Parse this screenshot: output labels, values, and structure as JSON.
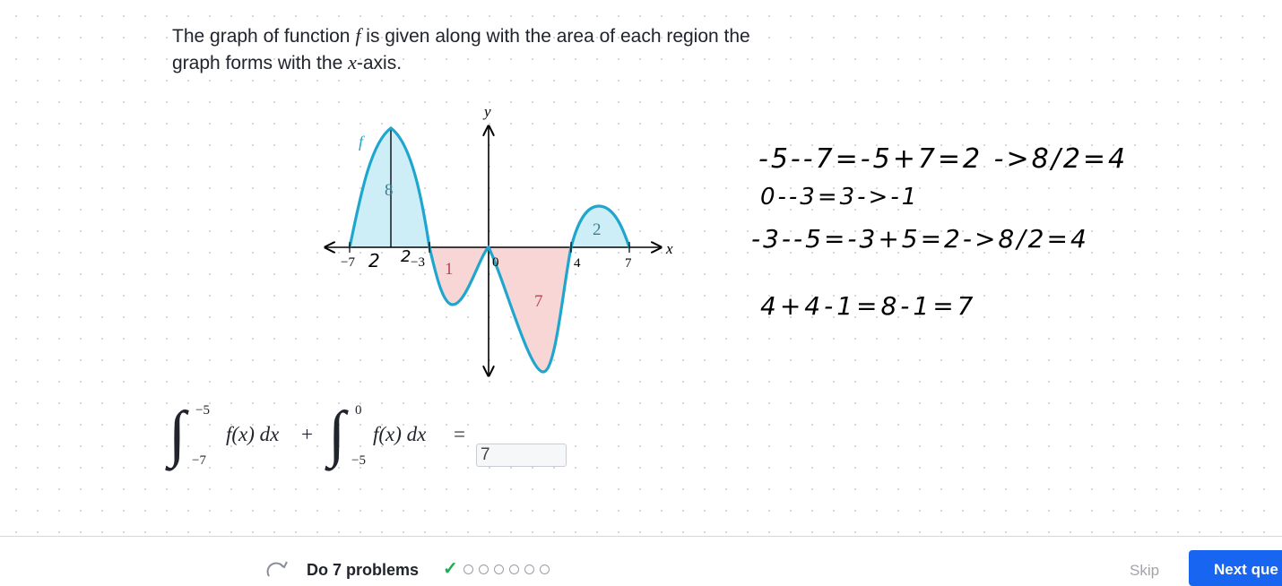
{
  "question": {
    "line1_before": "The graph of function",
    "func": "f",
    "line1_after": "is given along with the area of each region the",
    "line2_before": "graph forms with the",
    "xvar": "x",
    "line2_after": "-axis."
  },
  "graph": {
    "function_label": "f",
    "x_axis_label": "x",
    "y_axis_label": "y",
    "origin_label": "0",
    "x_tick_labels": [
      "−7",
      "−3",
      "4",
      "7"
    ],
    "region_areas": [
      "8",
      "1",
      "7",
      "2"
    ],
    "colors": {
      "curve": "#1fa6ce",
      "above_fill": "#cdeef6",
      "below_fill": "#f8d6d6",
      "above_text": "#3c7a8c",
      "below_text": "#b8444f"
    }
  },
  "scratch_notes": [
    "-5--7=-5+7=2 ->8/2=4",
    "0--3=3->-1",
    "-3--5=-3+5=2->8/2=4",
    "4+4-1=8-1=7",
    "2",
    "2"
  ],
  "equation": {
    "integral1_upper": "−5",
    "integral1_lower": "−7",
    "integral2_upper": "0",
    "integral2_lower": "−5",
    "integrand": "f(x) dx",
    "plus": "+",
    "equals": "="
  },
  "answer_value": "7",
  "footer": {
    "task": "Do 7 problems",
    "progress_total": 7,
    "progress_done": 1,
    "skip_label": "Skip",
    "next_label": "Next que"
  }
}
